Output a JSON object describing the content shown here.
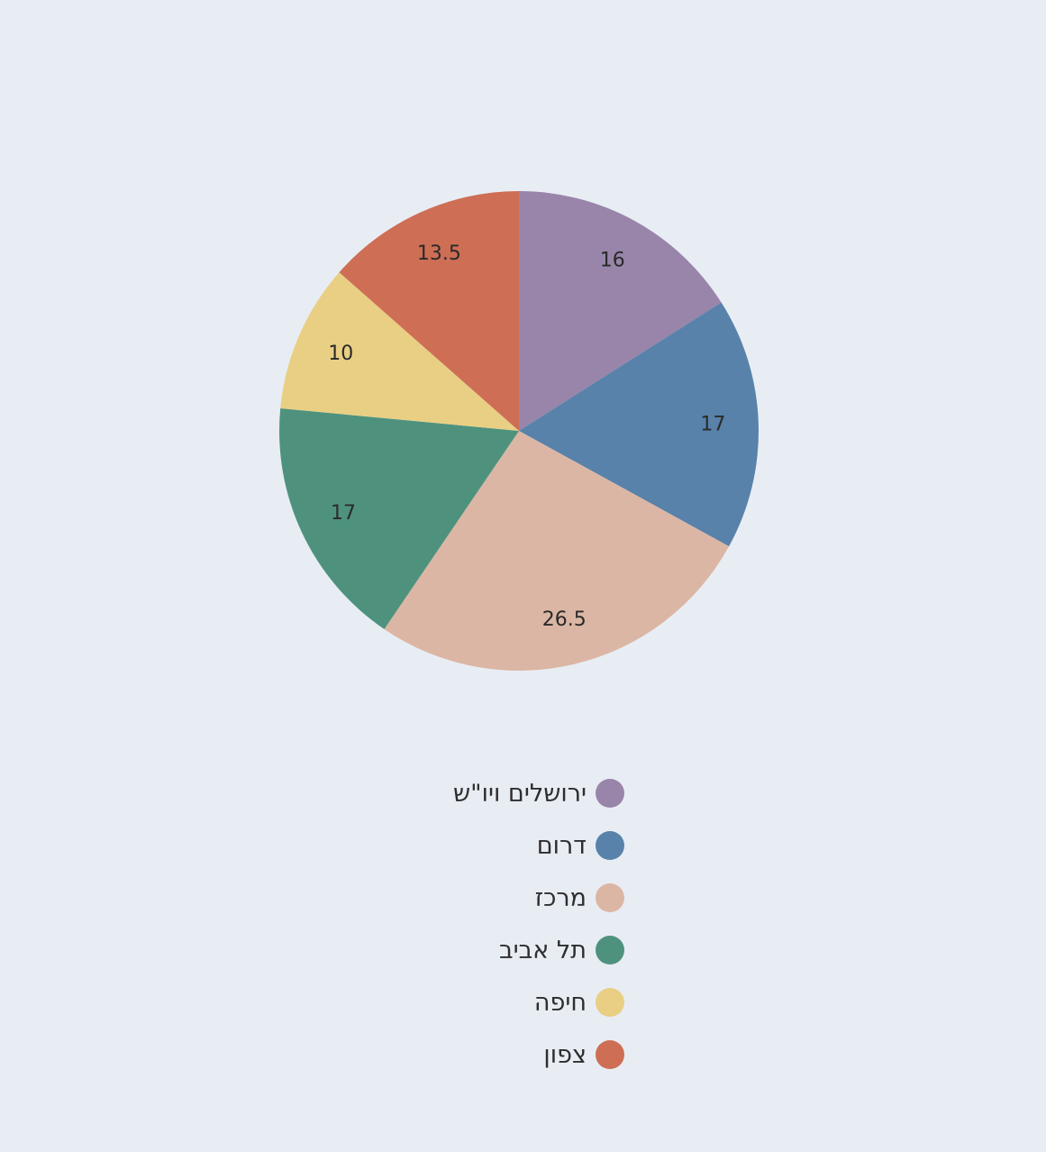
{
  "chart_data": {
    "type": "pie",
    "categories": [
      "ירושלים ויו\"ש",
      "דרום",
      "מרכז",
      "תל אביב",
      "חיפה",
      "צפון"
    ],
    "values": [
      16,
      17,
      26.5,
      17,
      10,
      13.5
    ],
    "value_labels": [
      "16",
      "17",
      "26.5",
      "17",
      "10",
      "13.5"
    ],
    "colors": [
      "#9985aa",
      "#5882aa",
      "#dcb6a4",
      "#4e927e",
      "#e9cf84",
      "#ce6e55"
    ],
    "start_angle": "12 o'clock",
    "direction": "clockwise",
    "legend_position": "bottom-center"
  }
}
